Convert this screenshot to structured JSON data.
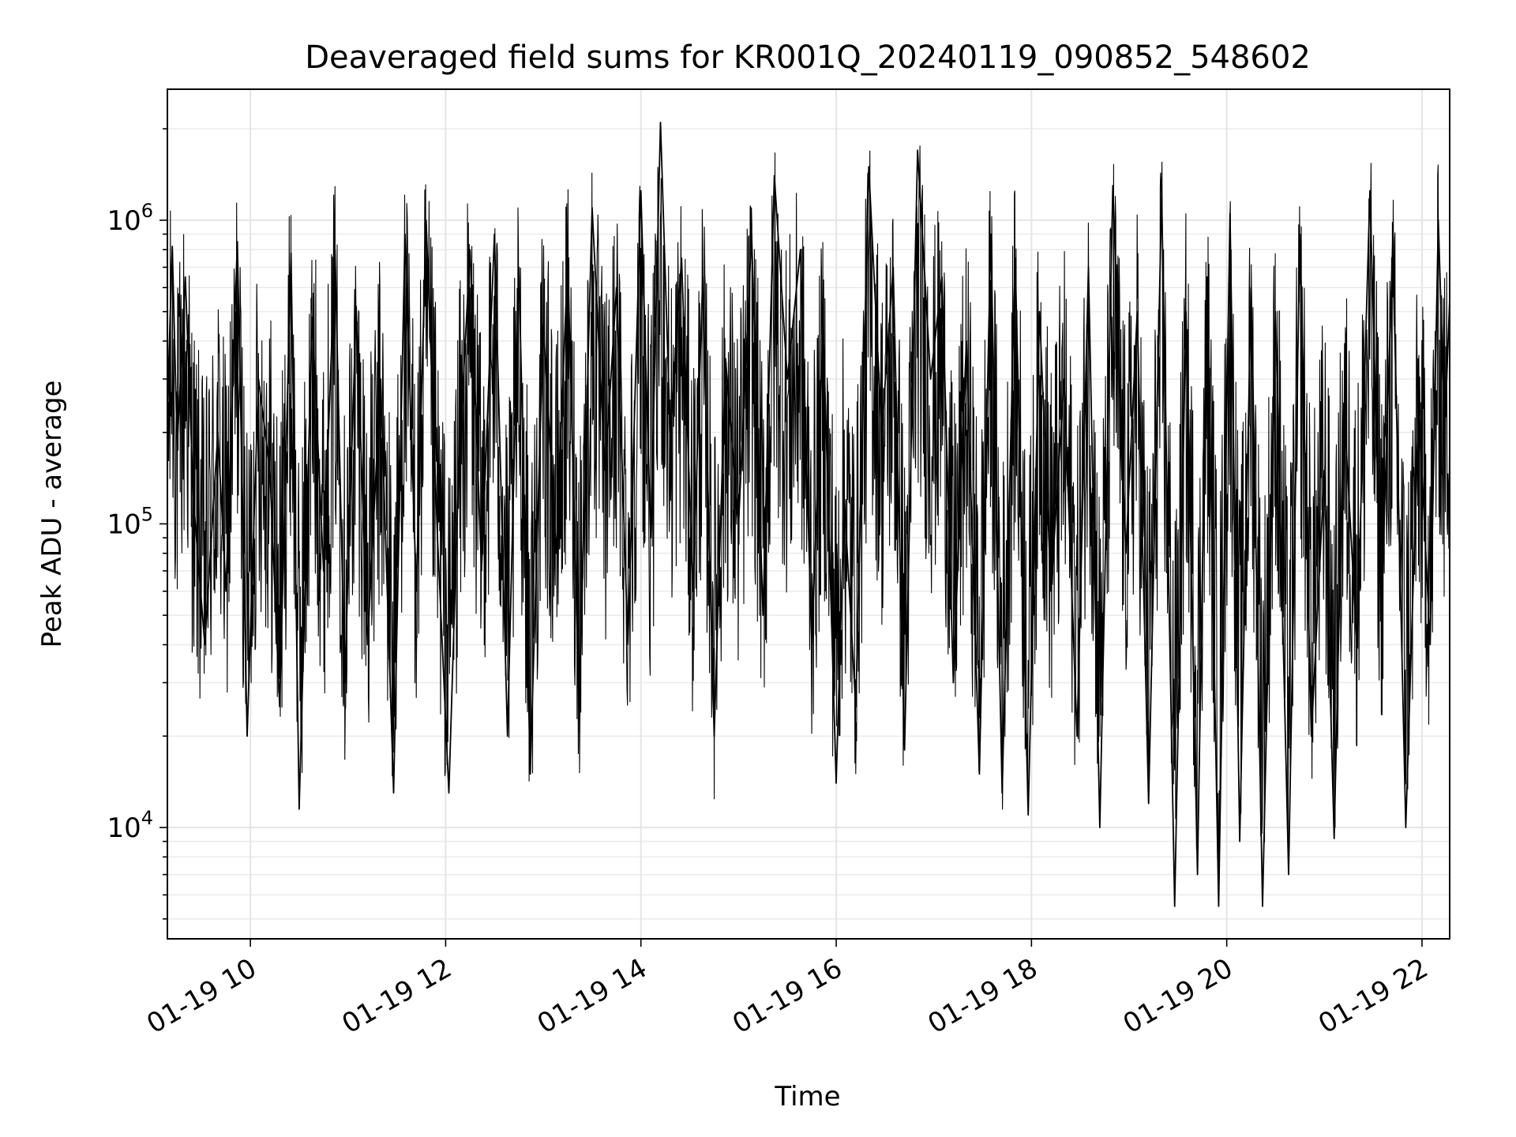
{
  "chart_data": {
    "type": "line",
    "title": "Deaveraged field sums for KR001Q_20240119_090852_548602",
    "xlabel": "Time",
    "ylabel": "Peak ADU - average",
    "y_scale": "log",
    "grid": true,
    "xlim": [
      "2024-01-19 09:09",
      "2024-01-19 22:17"
    ],
    "ylim": [
      4300,
      2700000
    ],
    "x_ticks": [
      {
        "value": "2024-01-19 10:00",
        "label": "01-19 10"
      },
      {
        "value": "2024-01-19 12:00",
        "label": "01-19 12"
      },
      {
        "value": "2024-01-19 14:00",
        "label": "01-19 14"
      },
      {
        "value": "2024-01-19 16:00",
        "label": "01-19 16"
      },
      {
        "value": "2024-01-19 18:00",
        "label": "01-19 18"
      },
      {
        "value": "2024-01-19 20:00",
        "label": "01-19 20"
      },
      {
        "value": "2024-01-19 22:00",
        "label": "01-19 22"
      }
    ],
    "y_ticks": [
      {
        "value": 10000,
        "base": "10",
        "exp": "4"
      },
      {
        "value": 100000,
        "base": "10",
        "exp": "5"
      },
      {
        "value": 1000000,
        "base": "10",
        "exp": "6"
      }
    ],
    "series": [
      {
        "color": "#000000",
        "points": [
          [
            "2024-01-19 09:09",
            240000
          ],
          [
            "2024-01-19 09:12",
            820000
          ],
          [
            "2024-01-19 09:15",
            180000
          ],
          [
            "2024-01-19 09:20",
            650000
          ],
          [
            "2024-01-19 09:25",
            120000
          ],
          [
            "2024-01-19 09:32",
            40000
          ],
          [
            "2024-01-19 09:40",
            200000
          ],
          [
            "2024-01-19 09:45",
            60000
          ],
          [
            "2024-01-19 09:52",
            850000
          ],
          [
            "2024-01-19 09:58",
            20000
          ],
          [
            "2024-01-19 10:05",
            300000
          ],
          [
            "2024-01-19 10:12",
            150000
          ],
          [
            "2024-01-19 10:18",
            25000
          ],
          [
            "2024-01-19 10:25",
            780000
          ],
          [
            "2024-01-19 10:30",
            11500
          ],
          [
            "2024-01-19 10:38",
            480000
          ],
          [
            "2024-01-19 10:45",
            70000
          ],
          [
            "2024-01-19 10:52",
            800000
          ],
          [
            "2024-01-19 10:58",
            30000
          ],
          [
            "2024-01-19 11:05",
            520000
          ],
          [
            "2024-01-19 11:12",
            40000
          ],
          [
            "2024-01-19 11:20",
            300000
          ],
          [
            "2024-01-19 11:28",
            13000
          ],
          [
            "2024-01-19 11:35",
            900000
          ],
          [
            "2024-01-19 11:42",
            60000
          ],
          [
            "2024-01-19 11:48",
            1000000
          ],
          [
            "2024-01-19 11:55",
            90000
          ],
          [
            "2024-01-19 12:02",
            13000
          ],
          [
            "2024-01-19 12:08",
            150000
          ],
          [
            "2024-01-19 12:15",
            800000
          ],
          [
            "2024-01-19 12:22",
            70000
          ],
          [
            "2024-01-19 12:30",
            900000
          ],
          [
            "2024-01-19 12:38",
            20000
          ],
          [
            "2024-01-19 12:45",
            700000
          ],
          [
            "2024-01-19 12:52",
            15000
          ],
          [
            "2024-01-19 13:00",
            450000
          ],
          [
            "2024-01-19 13:08",
            80000
          ],
          [
            "2024-01-19 13:15",
            750000
          ],
          [
            "2024-01-19 13:22",
            25000
          ],
          [
            "2024-01-19 13:30",
            1100000
          ],
          [
            "2024-01-19 13:38",
            150000
          ],
          [
            "2024-01-19 13:45",
            600000
          ],
          [
            "2024-01-19 13:52",
            40000
          ],
          [
            "2024-01-19 14:00",
            1250000
          ],
          [
            "2024-01-19 14:06",
            90000
          ],
          [
            "2024-01-19 14:12",
            2100000
          ],
          [
            "2024-01-19 14:18",
            200000
          ],
          [
            "2024-01-19 14:25",
            750000
          ],
          [
            "2024-01-19 14:32",
            60000
          ],
          [
            "2024-01-19 14:38",
            650000
          ],
          [
            "2024-01-19 14:45",
            20000
          ],
          [
            "2024-01-19 14:52",
            350000
          ],
          [
            "2024-01-19 15:00",
            100000
          ],
          [
            "2024-01-19 15:08",
            900000
          ],
          [
            "2024-01-19 15:15",
            50000
          ],
          [
            "2024-01-19 15:22",
            1400000
          ],
          [
            "2024-01-19 15:30",
            300000
          ],
          [
            "2024-01-19 15:38",
            800000
          ],
          [
            "2024-01-19 15:45",
            40000
          ],
          [
            "2024-01-19 15:52",
            450000
          ],
          [
            "2024-01-19 16:00",
            14000
          ],
          [
            "2024-01-19 16:05",
            120000
          ],
          [
            "2024-01-19 16:12",
            25000
          ],
          [
            "2024-01-19 16:20",
            1500000
          ],
          [
            "2024-01-19 16:28",
            200000
          ],
          [
            "2024-01-19 16:35",
            700000
          ],
          [
            "2024-01-19 16:42",
            18000
          ],
          [
            "2024-01-19 16:50",
            1700000
          ],
          [
            "2024-01-19 16:58",
            300000
          ],
          [
            "2024-01-19 17:05",
            650000
          ],
          [
            "2024-01-19 17:12",
            30000
          ],
          [
            "2024-01-19 17:20",
            400000
          ],
          [
            "2024-01-19 17:28",
            15000
          ],
          [
            "2024-01-19 17:35",
            900000
          ],
          [
            "2024-01-19 17:42",
            13000
          ],
          [
            "2024-01-19 17:50",
            750000
          ],
          [
            "2024-01-19 17:58",
            11000
          ],
          [
            "2024-01-19 18:05",
            500000
          ],
          [
            "2024-01-19 18:12",
            60000
          ],
          [
            "2024-01-19 18:20",
            300000
          ],
          [
            "2024-01-19 18:28",
            20000
          ],
          [
            "2024-01-19 18:35",
            700000
          ],
          [
            "2024-01-19 18:42",
            10000
          ],
          [
            "2024-01-19 18:50",
            1300000
          ],
          [
            "2024-01-19 18:58",
            80000
          ],
          [
            "2024-01-19 19:05",
            500000
          ],
          [
            "2024-01-19 19:12",
            12000
          ],
          [
            "2024-01-19 19:20",
            1200000
          ],
          [
            "2024-01-19 19:28",
            5500
          ],
          [
            "2024-01-19 19:35",
            500000
          ],
          [
            "2024-01-19 19:42",
            7000
          ],
          [
            "2024-01-19 19:48",
            650000
          ],
          [
            "2024-01-19 19:55",
            5500
          ],
          [
            "2024-01-19 20:02",
            1050000
          ],
          [
            "2024-01-19 20:08",
            9000
          ],
          [
            "2024-01-19 20:15",
            600000
          ],
          [
            "2024-01-19 20:22",
            5500
          ],
          [
            "2024-01-19 20:30",
            500000
          ],
          [
            "2024-01-19 20:38",
            7000
          ],
          [
            "2024-01-19 20:45",
            900000
          ],
          [
            "2024-01-19 20:52",
            20000
          ],
          [
            "2024-01-19 21:00",
            150000
          ],
          [
            "2024-01-19 21:06",
            9200
          ],
          [
            "2024-01-19 21:12",
            250000
          ],
          [
            "2024-01-19 21:20",
            40000
          ],
          [
            "2024-01-19 21:28",
            1250000
          ],
          [
            "2024-01-19 21:35",
            50000
          ],
          [
            "2024-01-19 21:42",
            850000
          ],
          [
            "2024-01-19 21:50",
            10000
          ],
          [
            "2024-01-19 21:58",
            250000
          ],
          [
            "2024-01-19 22:05",
            40000
          ],
          [
            "2024-01-19 22:10",
            1000000
          ],
          [
            "2024-01-19 22:14",
            200000
          ],
          [
            "2024-01-19 22:17",
            550000
          ]
        ]
      }
    ]
  }
}
